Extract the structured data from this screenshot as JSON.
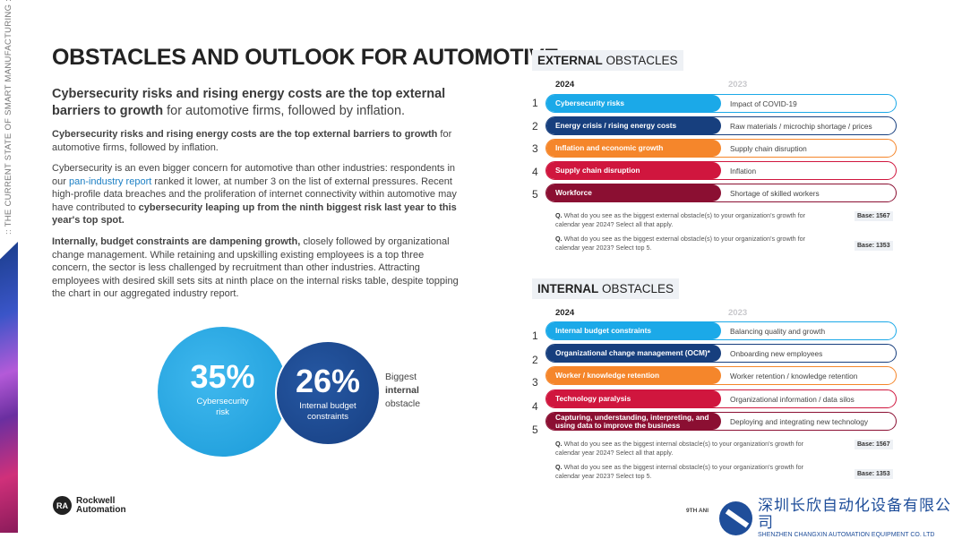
{
  "side_label": ":: THE CURRENT STATE OF SMART MANUFACTURING ::",
  "title": {
    "light": "OBSTACLES ",
    "bold": "AND OUTLOOK FOR AUTOMOTIVE"
  },
  "lead": {
    "bold": "Cybersecurity risks and rising energy costs are the top external barriers to growth",
    "rest": " for automotive firms, followed by inflation."
  },
  "paragraphs": {
    "p1_bold": "Cybersecurity risks and rising energy costs are the top external barriers to growth",
    "p1_rest": " for automotive firms, followed by inflation.",
    "p2_a": "Cybersecurity is an even bigger concern for automotive than other industries: respondents in our ",
    "p2_link": "pan-industry report",
    "p2_b": " ranked it lower, at number 3 on the list of external pressures. Recent high-profile data breaches and the proliferation of internet connectivity within automotive may have contributed to ",
    "p2_bold": "cybersecurity leaping up from the ninth biggest risk last year to this year's top spot.",
    "p3_bold": "Internally, budget constraints are dampening growth,",
    "p3_rest": " closely followed by organizational change management. While retaining and upskilling existing employees is a top three concern, the sector is less challenged by recruitment than other industries. Attracting employees with desired skill sets sits at ninth place on the internal risks table, despite topping the chart in our aggregated industry report."
  },
  "stats": [
    {
      "value": "35%",
      "label": "Cybersecurity risk"
    },
    {
      "value": "26%",
      "label": "Internal budget constraints"
    }
  ],
  "biggest": {
    "a": "Biggest",
    "b": "internal",
    "c": "obstacle"
  },
  "colors": [
    "#1ba9e8",
    "#173f7e",
    "#f5862b",
    "#d0163e",
    "#8b0f32"
  ],
  "external": {
    "head_bold": "EXTERNAL",
    "head_rest": " OBSTACLES",
    "year_current": "2024",
    "year_previous": "2023",
    "rows": [
      {
        "rank": "1",
        "y2024": "Cybersecurity risks",
        "y2023": "Impact of COVID-19"
      },
      {
        "rank": "2",
        "y2024": "Energy crisis / rising energy costs",
        "y2023": "Raw materials / microchip shortage / prices"
      },
      {
        "rank": "3",
        "y2024": "Inflation and economic growth",
        "y2023": "Supply chain disruption"
      },
      {
        "rank": "4",
        "y2024": "Supply chain disruption",
        "y2023": "Inflation"
      },
      {
        "rank": "5",
        "y2024": "Workforce",
        "y2023": "Shortage of skilled workers"
      }
    ],
    "q1": "What do you see as the biggest external obstacle(s) to your organization's growth for calendar year 2024? Select all that apply.",
    "base1": "Base: 1567",
    "q2": "What do you see as the biggest external obstacle(s) to your organization's growth for calendar year 2023? Select top 5.",
    "base2": "Base: 1353"
  },
  "internal": {
    "head_bold": "INTERNAL",
    "head_rest": " OBSTACLES",
    "year_current": "2024",
    "year_previous": "2023",
    "rows": [
      {
        "rank": "1",
        "y2024": "Internal budget constraints",
        "y2023": "Balancing quality and growth"
      },
      {
        "rank": "2",
        "y2024": "Organizational change management (OCM)*",
        "y2023": "Onboarding new employees"
      },
      {
        "rank": "3",
        "y2024": "Worker / knowledge retention",
        "y2023": "Worker retention / knowledge retention"
      },
      {
        "rank": "4",
        "y2024": "Technology paralysis",
        "y2023": "Organizational information / data silos"
      },
      {
        "rank": "5",
        "y2024": "Capturing, understanding, interpreting, and using data to improve the business",
        "y2023": "Deploying and integrating new technology"
      }
    ],
    "q1": "What do you see as the biggest internal obstacle(s) to your organization's growth for calendar year 2024? Select all that apply.",
    "base1": "Base: 1567",
    "q2": "What do you see as the biggest internal obstacle(s) to your organization's growth for calendar year 2023? Select top 5.",
    "base2": "Base: 1353"
  },
  "q_prefix": "Q.",
  "logo": {
    "mark": "RA",
    "line1": "Rockwell",
    "line2": "Automation"
  },
  "footer_page": "9TH ANI",
  "watermark": {
    "cn": "深圳长欣自动化设备有限公司",
    "en": "SHENZHEN CHANGXIN AUTOMATION EQUIPMENT CO. LTD"
  }
}
